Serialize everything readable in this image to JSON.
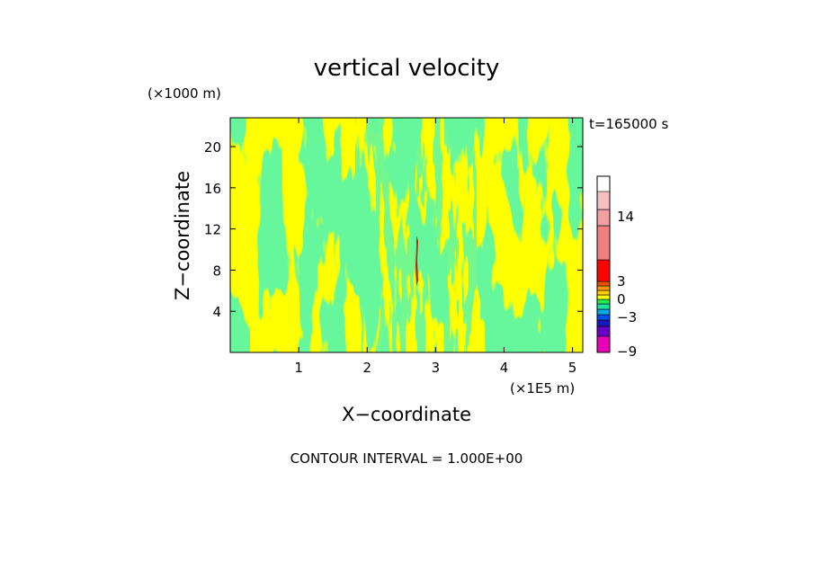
{
  "chart_data": {
    "type": "heatmap",
    "title": "vertical velocity",
    "xlabel": "X−coordinate",
    "ylabel": "Z−coordinate",
    "x_unit": "(×1E5 m)",
    "y_unit": "(×1000 m)",
    "time_label": "t=165000 s",
    "footer": "CONTOUR INTERVAL = 1.000E+00",
    "xlim": [
      0,
      5.15
    ],
    "ylim": [
      0,
      22.8
    ],
    "x_ticks": [
      1,
      2,
      3,
      4,
      5
    ],
    "y_ticks": [
      4,
      8,
      12,
      16,
      20
    ],
    "colorbar": {
      "labels": [
        {
          "value": 14,
          "text": "14"
        },
        {
          "value": 3,
          "text": "3"
        },
        {
          "value": 0,
          "text": "0"
        },
        {
          "value": -3,
          "text": "−3"
        },
        {
          "value": -9,
          "text": "−9"
        }
      ],
      "levels": [
        {
          "value": -9,
          "color": "#e800b8"
        },
        {
          "value": -6,
          "color": "#6a00c8"
        },
        {
          "value": -4,
          "color": "#1818c0"
        },
        {
          "value": -3,
          "color": "#0050f0"
        },
        {
          "value": -2,
          "color": "#00a8e8"
        },
        {
          "value": -1,
          "color": "#20e0a0"
        },
        {
          "value": 0,
          "color": "#22ee55"
        },
        {
          "value": 1,
          "color": "#ffff00"
        },
        {
          "value": 2,
          "color": "#ffd000"
        },
        {
          "value": 3,
          "color": "#ff9a00"
        },
        {
          "value": 4,
          "color": "#ee5000"
        },
        {
          "value": 5,
          "color": "#ff0000"
        },
        {
          "value": 8,
          "color": "#f08080"
        },
        {
          "value": 14,
          "color": "#f0a0a0"
        },
        {
          "value": 18,
          "color": "#f5c0c0"
        }
      ]
    },
    "field_colors": {
      "positive": "#ffff00",
      "negative": "#22ee55",
      "updraft": "#cc2200"
    }
  }
}
